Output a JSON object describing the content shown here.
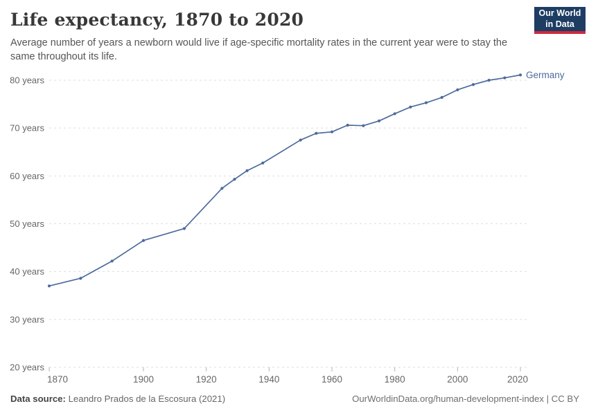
{
  "header": {
    "title": "Life expectancy, 1870 to 2020",
    "subtitle": "Average number of years a newborn would live if age-specific mortality rates in the current year were to stay the same throughout its life.",
    "logo": {
      "line1": "Our World",
      "line2": "in Data",
      "bg_color": "#1d3d63",
      "accent_color": "#d0293e"
    }
  },
  "chart_data": {
    "type": "line",
    "title": "Life expectancy, 1870 to 2020",
    "xlabel": "",
    "ylabel": "",
    "grid": "dashed horizontal gridlines",
    "legend_position": "label at end of line",
    "xlim": [
      1870,
      2023
    ],
    "ylim": [
      20,
      85
    ],
    "x_ticks": [
      1870,
      1900,
      1920,
      1940,
      1960,
      1980,
      2000,
      2020
    ],
    "x_tick_labels": [
      "1870",
      "1900",
      "1920",
      "1940",
      "1960",
      "1980",
      "2000",
      "2020"
    ],
    "y_ticks": [
      20,
      30,
      40,
      50,
      60,
      70,
      80
    ],
    "y_tick_labels": [
      "20 years",
      "30 years",
      "40 years",
      "50 years",
      "60 years",
      "70 years",
      "80 years"
    ],
    "series": [
      {
        "name": "Germany",
        "color": "#4C6A9C",
        "x": [
          1870,
          1880,
          1890,
          1900,
          1913,
          1925,
          1929,
          1933,
          1938,
          1950,
          1955,
          1960,
          1965,
          1970,
          1975,
          1980,
          1985,
          1990,
          1995,
          2000,
          2005,
          2010,
          2015,
          2020
        ],
        "values": [
          37.0,
          38.6,
          42.2,
          46.5,
          49.0,
          57.4,
          59.3,
          61.1,
          62.7,
          67.5,
          68.9,
          69.2,
          70.6,
          70.5,
          71.5,
          73.0,
          74.4,
          75.3,
          76.4,
          78.0,
          79.1,
          80.0,
          80.5,
          81.1
        ]
      }
    ]
  },
  "footer": {
    "source_label": "Data source:",
    "source_value": "Leandro Prados de la Escosura (2021)",
    "credit": "OurWorldinData.org/human-development-index | CC BY"
  },
  "colors": {
    "line": "#4C6A9C",
    "gridline": "#dddddd",
    "tick": "#b3b3b3",
    "axis_text": "#666666"
  }
}
